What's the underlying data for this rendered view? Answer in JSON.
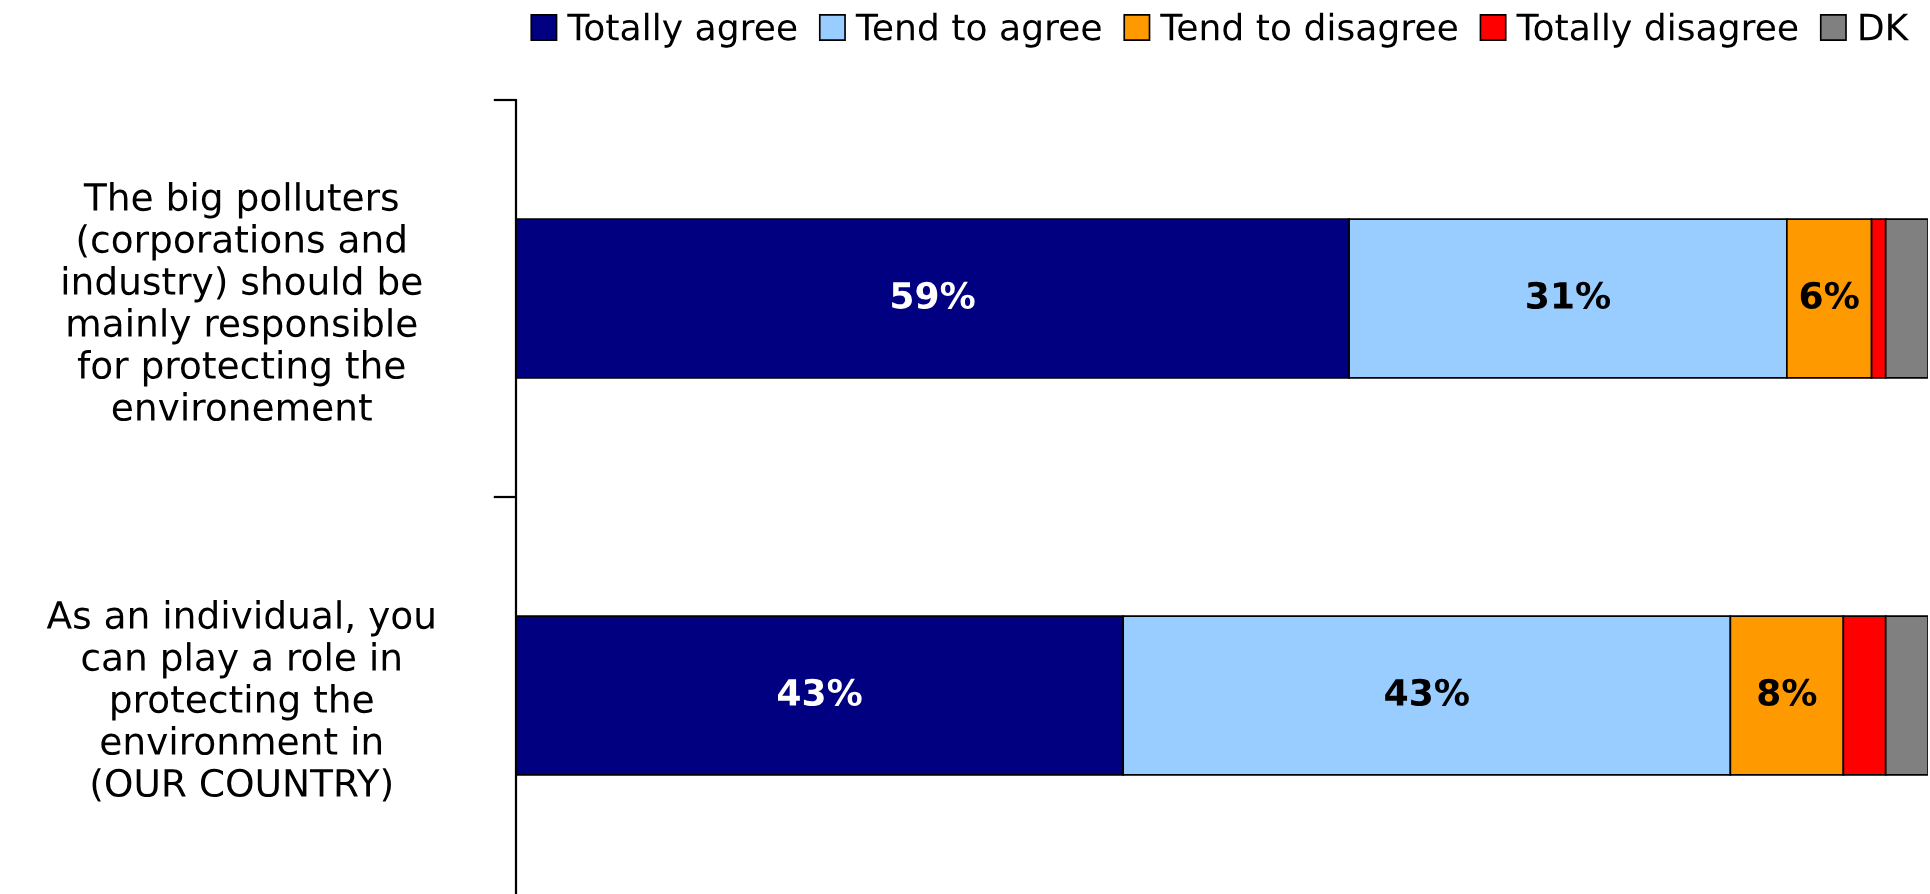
{
  "chart_data": {
    "type": "bar",
    "orientation": "horizontal",
    "stacked": true,
    "categories": [
      "The big polluters\n(corporations and\nindustry) should be\nmainly responsible\nfor protecting the\nenvironement",
      "As an individual, you\ncan play a role in\nprotecting the\nenvironment in\n(OUR COUNTRY)"
    ],
    "series": [
      {
        "name": "Totally agree",
        "color": "#000080",
        "values": [
          59,
          43
        ],
        "value_labels": [
          "59%",
          "43%"
        ]
      },
      {
        "name": "Tend to agree",
        "color": "#99ccff",
        "values": [
          31,
          43
        ],
        "value_labels": [
          "31%",
          "43%"
        ]
      },
      {
        "name": "Tend to disagree",
        "color": "#ff9900",
        "values": [
          6,
          8
        ],
        "value_labels": [
          "6%",
          "8%"
        ]
      },
      {
        "name": "Totally disagree",
        "color": "#ff0000",
        "values": [
          1,
          3
        ],
        "value_labels": [
          null,
          null
        ]
      },
      {
        "name": "DK",
        "color": "#808080",
        "values": [
          3,
          3
        ],
        "value_labels": [
          null,
          null
        ]
      }
    ],
    "xlim": [
      0,
      100
    ],
    "tick_labels": "y",
    "legend": "top",
    "grid": false
  }
}
